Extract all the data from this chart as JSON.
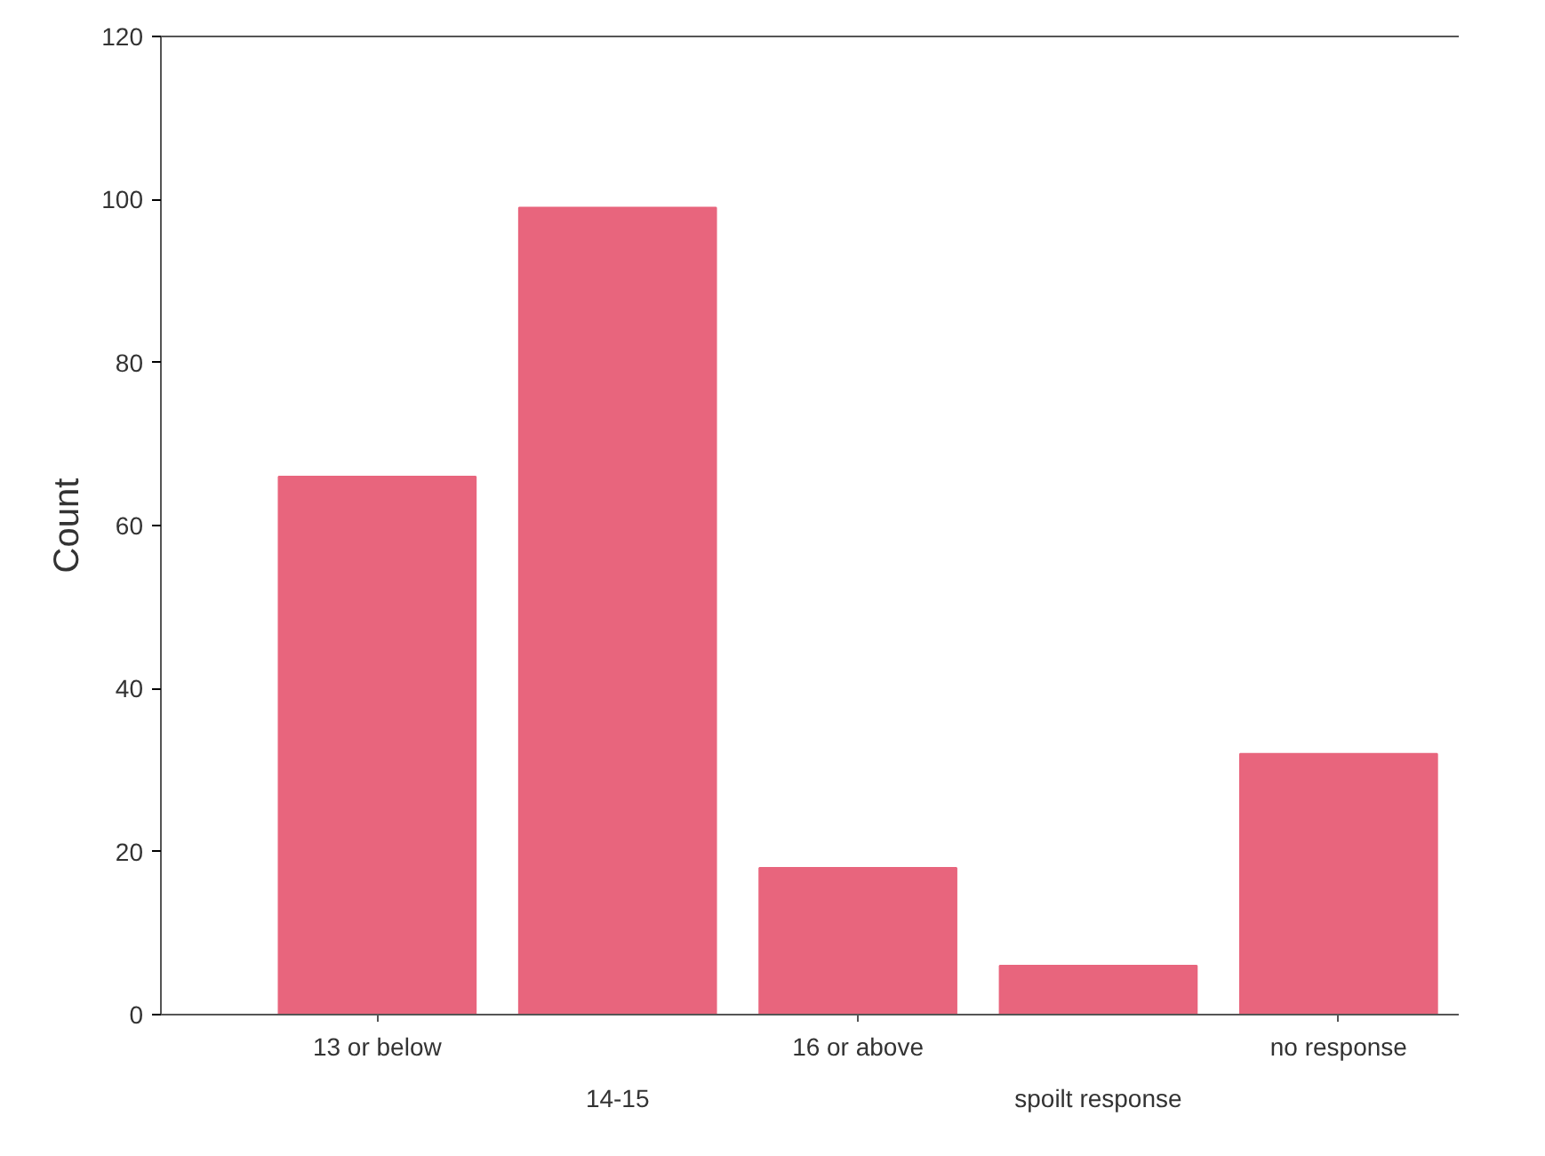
{
  "chart_data": {
    "type": "bar",
    "ylabel": "Count",
    "categories": [
      "13 or below",
      "14-15",
      "16 or above",
      "spoilt response",
      "no response"
    ],
    "values": [
      66,
      99,
      18,
      6,
      32
    ],
    "color": "#e8657d",
    "ylim": [
      0,
      120
    ],
    "yticks": [
      0,
      20,
      40,
      60,
      80,
      100,
      120
    ]
  }
}
